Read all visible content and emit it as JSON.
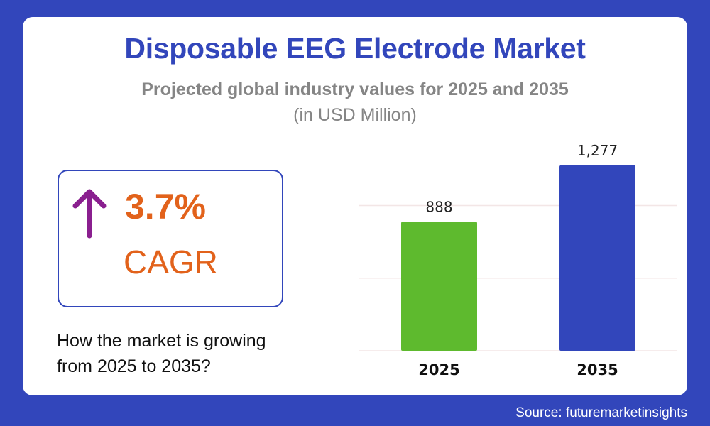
{
  "title": "Disposable EEG Electrode Market",
  "subtitle": "Projected global industry values for 2025 and 2035",
  "unit": "(in USD Million)",
  "cagr": {
    "value": "3.7%",
    "label": "CAGR",
    "icon": "arrow-up-icon",
    "icon_color": "#8a1f8f",
    "color": "#e2621b"
  },
  "question_line1": "How the market is growing",
  "question_line2": "from 2025 to 2035?",
  "source": "Source: futuremarketinsights",
  "colors": {
    "background": "#3246bb",
    "title": "#3246bb"
  },
  "chart_data": {
    "type": "bar",
    "categories": [
      "2025",
      "2035"
    ],
    "values": [
      888,
      1277
    ],
    "data_labels": [
      "888",
      "1,277"
    ],
    "bar_colors": [
      "#5eba2e",
      "#3246bb"
    ],
    "gridlines": [
      0,
      500,
      1000
    ],
    "grid": true,
    "title": "",
    "xlabel": "",
    "ylabel": "",
    "ylim": [
      0,
      1300
    ]
  }
}
